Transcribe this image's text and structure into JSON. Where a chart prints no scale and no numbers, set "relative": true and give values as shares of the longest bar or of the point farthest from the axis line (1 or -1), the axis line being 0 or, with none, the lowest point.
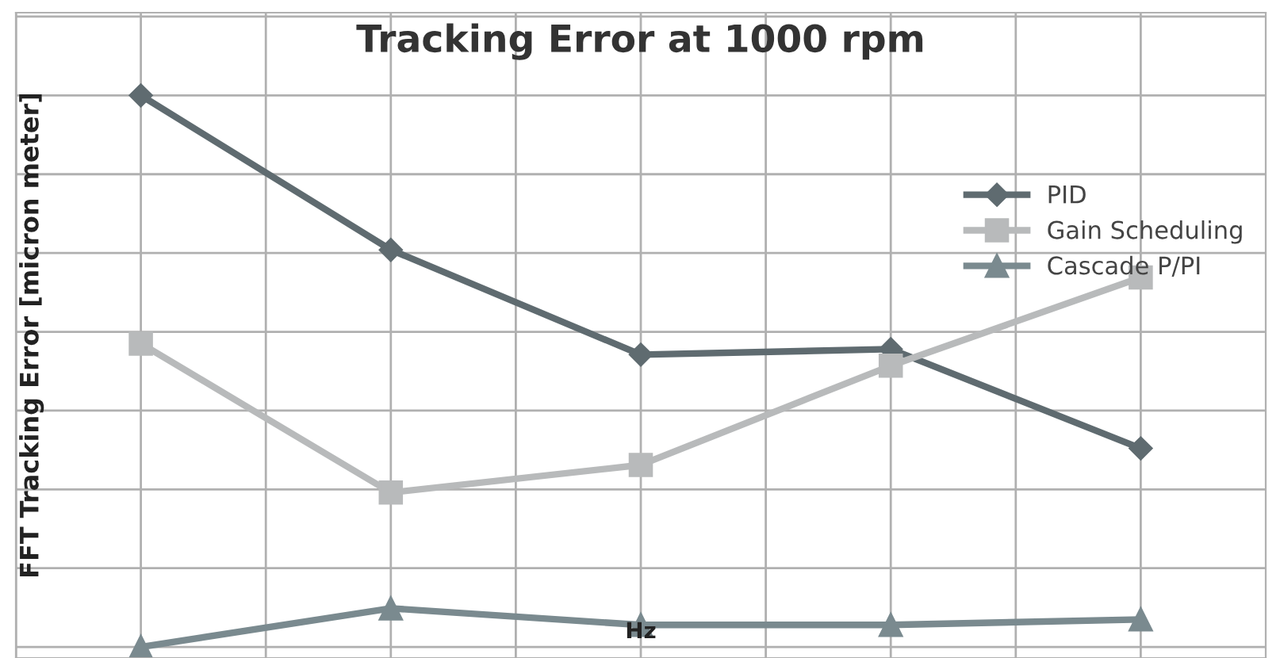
{
  "chart_data": {
    "type": "line",
    "title": "Tracking Error at 1000 rpm",
    "xlabel": "Hz",
    "ylabel": "FFT Tracking Error [micron meter]",
    "relative": true,
    "grid": true,
    "legend": "right",
    "categories": [
      null,
      null,
      null,
      null,
      null
    ],
    "series": [
      {
        "name": "PID",
        "color": "#5f6b70",
        "marker": "diamond",
        "values": [
          1,
          0.72,
          0.53,
          0.54,
          0.36
        ]
      },
      {
        "name": "Gain Scheduling",
        "color": "#b8babb",
        "marker": "square",
        "values": [
          0.55,
          0.28,
          0.33,
          0.51,
          0.67
        ]
      },
      {
        "name": "Cascade P/PI",
        "color": "#7a8a8f",
        "marker": "triangle",
        "values": [
          0,
          0.07,
          0.04,
          0.04,
          0.05
        ]
      }
    ]
  }
}
